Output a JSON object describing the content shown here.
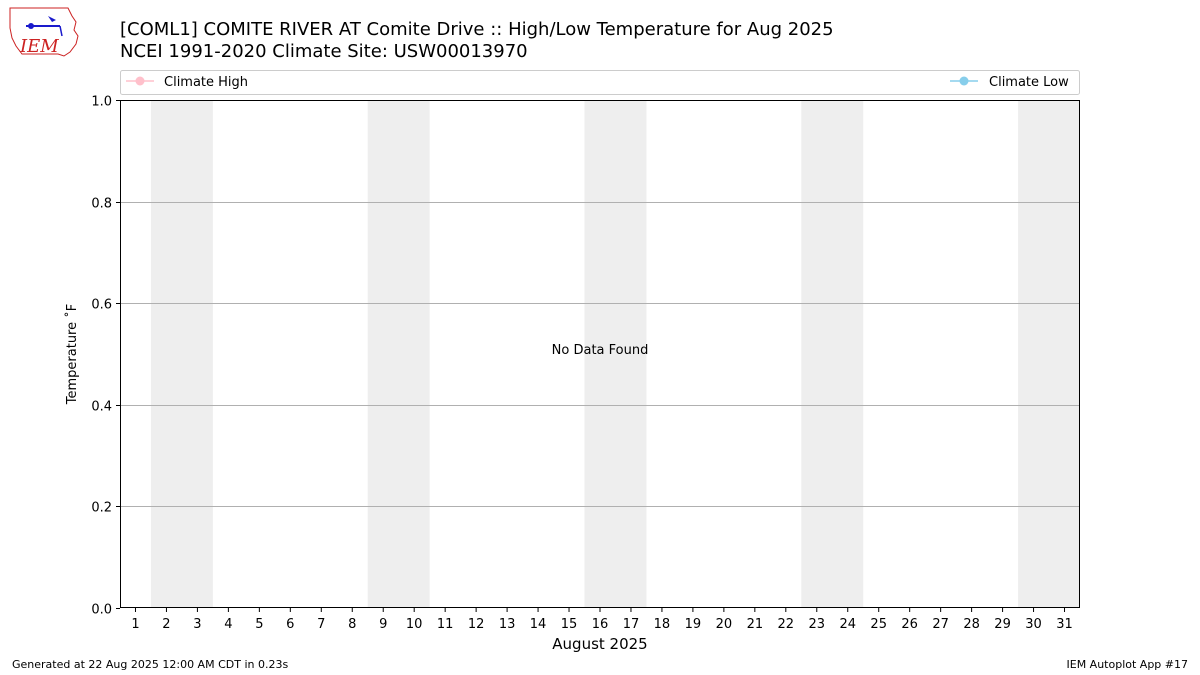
{
  "logo": {
    "text": "IEM",
    "icon": "iem-logo-icon"
  },
  "title": {
    "line1": "[COML1] COMITE RIVER  AT Comite Drive :: High/Low Temperature for Aug 2025",
    "line2": "NCEI 1991-2020 Climate Site: USW00013970"
  },
  "legend": [
    {
      "label": "Climate High",
      "color": "#ffc0cb"
    },
    {
      "label": "Climate Low",
      "color": "#87ceeb"
    }
  ],
  "chart_data": {
    "type": "line",
    "title": "[COML1] COMITE RIVER  AT Comite Drive :: High/Low Temperature for Aug 2025",
    "subtitle": "NCEI 1991-2020 Climate Site: USW00013970",
    "xlabel": "August 2025",
    "ylabel": "Temperature ˚F",
    "x_categories": [
      "1",
      "2",
      "3",
      "4",
      "5",
      "6",
      "7",
      "8",
      "9",
      "10",
      "11",
      "12",
      "13",
      "14",
      "15",
      "16",
      "17",
      "18",
      "19",
      "20",
      "21",
      "22",
      "23",
      "24",
      "25",
      "26",
      "27",
      "28",
      "29",
      "30",
      "31"
    ],
    "xlim": [
      0.5,
      31.5
    ],
    "ylim": [
      0.0,
      1.0
    ],
    "y_ticks": [
      "0.0",
      "0.2",
      "0.4",
      "0.6",
      "0.8",
      "1.0"
    ],
    "y_tick_values": [
      0.0,
      0.2,
      0.4,
      0.6,
      0.8,
      1.0
    ],
    "grid": "horizontal",
    "weekend_shading": [
      [
        2,
        3
      ],
      [
        9,
        10
      ],
      [
        16,
        17
      ],
      [
        23,
        24
      ],
      [
        30,
        31
      ]
    ],
    "shade_color": "#eeeeee",
    "series": [
      {
        "name": "Climate High",
        "color": "#ffc0cb",
        "values": []
      },
      {
        "name": "Climate Low",
        "color": "#87ceeb",
        "values": []
      }
    ],
    "annotation": "No Data Found",
    "legend_placement": "top, spanning width"
  },
  "footer": {
    "left": "Generated at 22 Aug 2025 12:00 AM CDT in 0.23s",
    "right": "IEM Autoplot App #17"
  }
}
